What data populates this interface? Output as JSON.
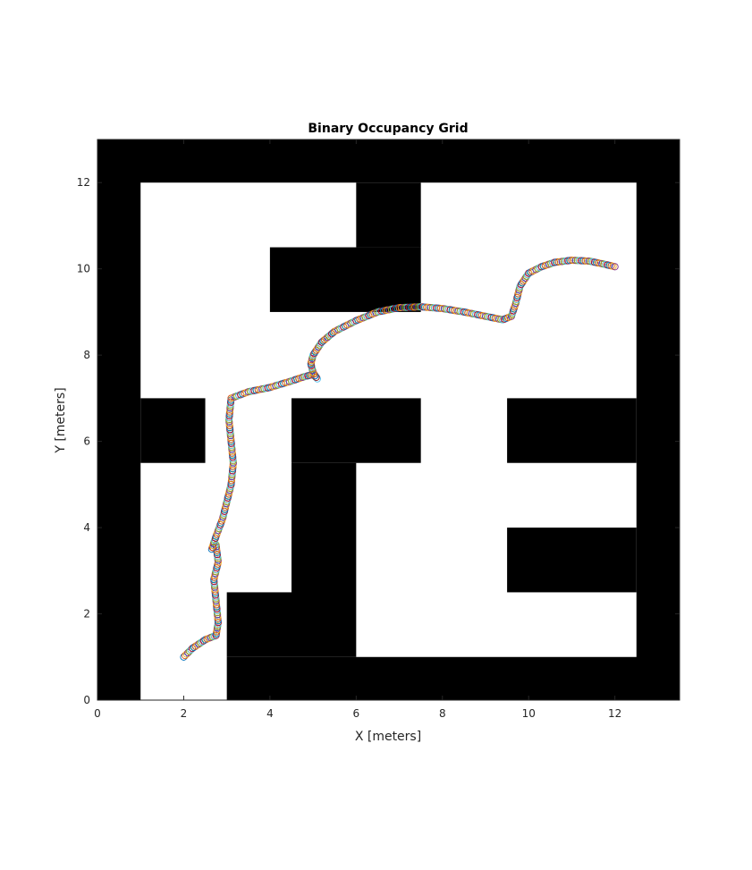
{
  "chart_data": {
    "type": "scatter",
    "title": "Binary Occupancy Grid",
    "xlabel": "X [meters]",
    "ylabel": "Y [meters]",
    "xlim": [
      0,
      13.5
    ],
    "ylim": [
      0,
      13
    ],
    "xticks": [
      "0",
      "2",
      "4",
      "6",
      "8",
      "10",
      "12"
    ],
    "yticks": [
      "0",
      "2",
      "4",
      "6",
      "8",
      "10",
      "12"
    ],
    "grid": false,
    "occupied_color": "#000000",
    "free_color": "#ffffff",
    "occupied_cells": [
      {
        "x0": 0,
        "x1": 13.5,
        "y0": 12,
        "y1": 13
      },
      {
        "x0": 0,
        "x1": 1,
        "y0": 0,
        "y1": 13
      },
      {
        "x0": 12.5,
        "x1": 13.5,
        "y0": 0,
        "y1": 13
      },
      {
        "x0": 3,
        "x1": 13.5,
        "y0": 0,
        "y1": 1
      },
      {
        "x0": 6,
        "x1": 7.5,
        "y0": 10.5,
        "y1": 12
      },
      {
        "x0": 4,
        "x1": 7.5,
        "y0": 9,
        "y1": 10.5
      },
      {
        "x0": 1,
        "x1": 2.5,
        "y0": 5.5,
        "y1": 7
      },
      {
        "x0": 4.5,
        "x1": 7.5,
        "y0": 5.5,
        "y1": 7
      },
      {
        "x0": 4.5,
        "x1": 6,
        "y0": 1,
        "y1": 5.5
      },
      {
        "x0": 3,
        "x1": 4.5,
        "y0": 1,
        "y1": 2.5
      },
      {
        "x0": 9.5,
        "x1": 12.5,
        "y0": 5.5,
        "y1": 7
      },
      {
        "x0": 9.5,
        "x1": 12.5,
        "y0": 2.5,
        "y1": 4
      }
    ],
    "path_marker_colors": [
      "#0072bd",
      "#d95319",
      "#edb120",
      "#7e2f8e",
      "#77ac30",
      "#4dbeee",
      "#a2142f"
    ],
    "path": {
      "x": [
        2.0,
        2.2,
        2.5,
        2.75,
        2.8,
        2.75,
        2.7,
        2.8,
        2.75,
        2.65,
        2.75,
        2.9,
        3.0,
        3.1,
        3.15,
        3.1,
        3.05,
        3.1,
        3.5,
        4.0,
        4.5,
        4.8,
        5.0,
        5.1,
        5.0,
        4.95,
        5.0,
        5.2,
        5.5,
        6.0,
        6.5,
        7.0,
        7.5,
        8.0,
        8.5,
        9.0,
        9.4,
        9.6,
        9.7,
        9.8,
        10.0,
        10.3,
        10.6,
        11.0,
        11.4,
        11.7,
        12.0
      ],
      "y": [
        1.0,
        1.2,
        1.4,
        1.5,
        1.8,
        2.3,
        2.8,
        3.2,
        3.6,
        3.5,
        3.8,
        4.2,
        4.6,
        5.0,
        5.5,
        6.0,
        6.5,
        7.0,
        7.15,
        7.25,
        7.4,
        7.5,
        7.55,
        7.45,
        7.6,
        7.8,
        8.0,
        8.3,
        8.55,
        8.8,
        9.0,
        9.1,
        9.12,
        9.08,
        9.0,
        8.9,
        8.82,
        8.9,
        9.2,
        9.6,
        9.9,
        10.05,
        10.15,
        10.2,
        10.18,
        10.12,
        10.05
      ]
    }
  }
}
